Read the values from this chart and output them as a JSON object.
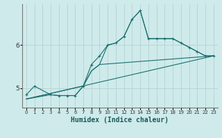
{
  "xlabel": "Humidex (Indice chaleur)",
  "ylabel": "",
  "background_color": "#ceeaea",
  "grid_color": "#b8d4d4",
  "line_color": "#1a6e6e",
  "xlim": [
    -0.5,
    23.5
  ],
  "ylim": [
    4.55,
    6.95
  ],
  "yticks": [
    5,
    6
  ],
  "xticks": [
    0,
    1,
    2,
    3,
    4,
    5,
    6,
    7,
    8,
    9,
    10,
    11,
    12,
    13,
    14,
    15,
    16,
    17,
    18,
    19,
    20,
    21,
    22,
    23
  ],
  "series": [
    {
      "x": [
        0,
        1,
        3,
        4,
        5,
        6,
        7,
        8,
        9,
        10,
        11,
        12,
        13,
        14,
        15,
        16,
        17,
        18,
        19,
        20,
        21,
        22,
        23
      ],
      "y": [
        4.85,
        5.05,
        4.85,
        4.83,
        4.83,
        4.83,
        5.05,
        5.55,
        5.75,
        6.0,
        6.05,
        6.2,
        6.6,
        6.8,
        6.15,
        6.15,
        6.15,
        6.15,
        6.05,
        5.95,
        5.85,
        5.75,
        5.75
      ],
      "marker": "+"
    },
    {
      "x": [
        0,
        3,
        4,
        5,
        6,
        7,
        8,
        9,
        23
      ],
      "y": [
        4.75,
        4.85,
        4.83,
        4.83,
        4.83,
        5.05,
        5.4,
        5.55,
        5.75
      ],
      "marker": null
    },
    {
      "x": [
        0,
        23
      ],
      "y": [
        4.75,
        5.75
      ],
      "marker": null
    },
    {
      "x": [
        0,
        7,
        8,
        9,
        10,
        11,
        12,
        13,
        14,
        15,
        16,
        17,
        18,
        19,
        20,
        21,
        22,
        23
      ],
      "y": [
        4.75,
        5.05,
        5.4,
        5.55,
        6.0,
        6.05,
        6.2,
        6.6,
        6.8,
        6.15,
        6.15,
        6.15,
        6.15,
        6.05,
        5.95,
        5.85,
        5.75,
        5.75
      ],
      "marker": null
    }
  ]
}
